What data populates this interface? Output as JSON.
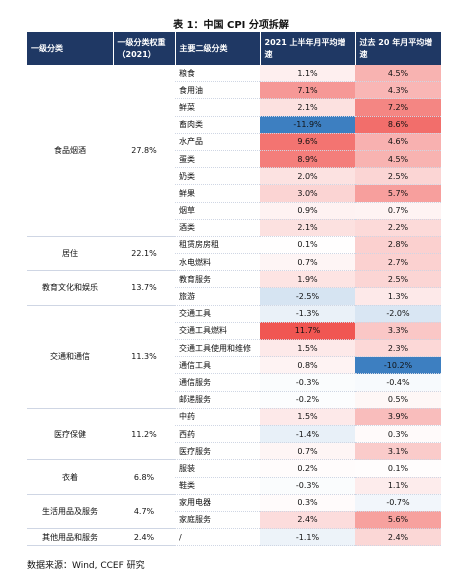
{
  "title": "表 1：中国 CPI 分项拆解",
  "header": [
    "一级分类",
    "一级分类权重（2021）",
    "主要二级分类",
    "2021 上半年月平均增速",
    "过去 20 年月平均增速"
  ],
  "groups": [
    {
      "name": "食品烟酒",
      "weight": "27.8%",
      "rows": [
        [
          "粮食",
          "1.1%",
          "4.5%"
        ],
        [
          "食用油",
          "7.1%",
          "4.3%"
        ],
        [
          "鲜菜",
          "2.1%",
          "7.2%"
        ],
        [
          "畜肉类",
          "-11.9%",
          "8.6%"
        ],
        [
          "水产品",
          "9.6%",
          "4.6%"
        ],
        [
          "蛋类",
          "8.9%",
          "4.5%"
        ],
        [
          "奶类",
          "2.0%",
          "2.5%"
        ],
        [
          "鲜果",
          "3.0%",
          "5.7%"
        ],
        [
          "烟草",
          "0.9%",
          "0.7%"
        ],
        [
          "酒类",
          "2.1%",
          "2.2%"
        ]
      ]
    },
    {
      "name": "居住",
      "weight": "22.1%",
      "rows": [
        [
          "租赁房房租",
          "0.1%",
          "2.8%"
        ],
        [
          "水电燃料",
          "0.7%",
          "2.7%"
        ]
      ]
    },
    {
      "name": "教育文化和娱乐",
      "weight": "13.7%",
      "rows": [
        [
          "教育服务",
          "1.9%",
          "2.5%"
        ],
        [
          "旅游",
          "-2.5%",
          "1.3%"
        ]
      ]
    },
    {
      "name": "交通和通信",
      "weight": "11.3%",
      "rows": [
        [
          "交通工具",
          "-1.3%",
          "-2.0%"
        ],
        [
          "交通工具燃料",
          "11.7%",
          "3.3%"
        ],
        [
          "交通工具使用和维修",
          "1.5%",
          "2.3%"
        ],
        [
          "通信工具",
          "0.8%",
          "-10.2%"
        ],
        [
          "通信服务",
          "-0.3%",
          "-0.4%"
        ],
        [
          "邮递服务",
          "-0.2%",
          "0.5%"
        ]
      ]
    },
    {
      "name": "医疗保健",
      "weight": "11.2%",
      "rows": [
        [
          "中药",
          "1.5%",
          "3.9%"
        ],
        [
          "西药",
          "-1.4%",
          "0.3%"
        ],
        [
          "医疗服务",
          "0.7%",
          "3.1%"
        ]
      ]
    },
    {
      "name": "衣着",
      "weight": "6.8%",
      "rows": [
        [
          "服装",
          "0.2%",
          "0.1%"
        ],
        [
          "鞋类",
          "-0.3%",
          "1.1%"
        ]
      ]
    },
    {
      "name": "生活用品及服务",
      "weight": "4.7%",
      "rows": [
        [
          "家用电器",
          "0.3%",
          "-0.7%"
        ],
        [
          "家庭服务",
          "2.4%",
          "5.6%"
        ]
      ]
    },
    {
      "name": "其他用品和服务",
      "weight": "2.4%",
      "rows": [
        [
          "/",
          "-1.1%",
          "2.4%"
        ]
      ]
    }
  ],
  "source": "数据来源：Wind, CCEF 研究"
}
